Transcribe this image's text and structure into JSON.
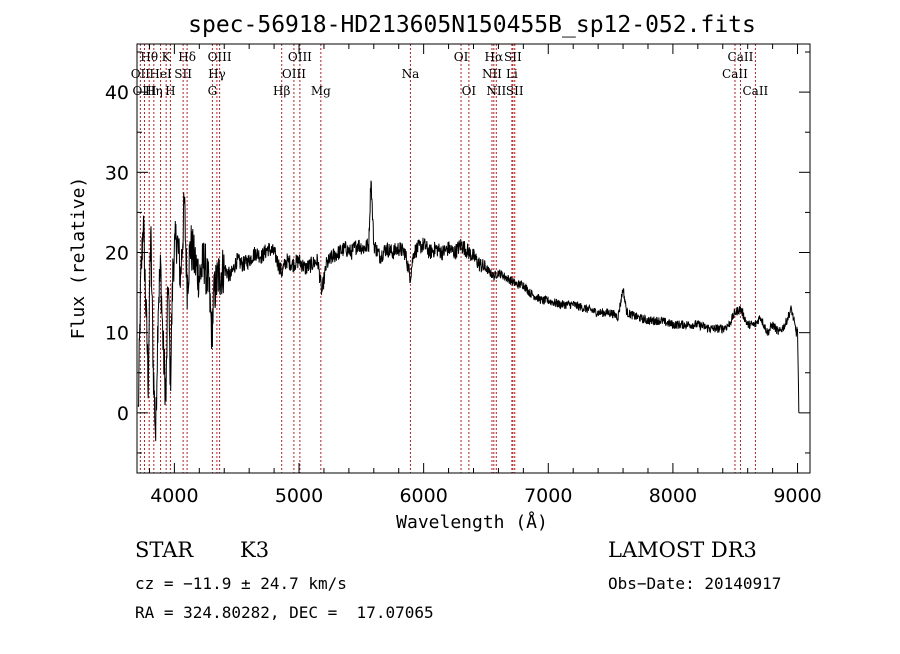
{
  "chart_data": {
    "type": "line",
    "title": "spec-56918-HD213605N150455B_sp12-052.fits",
    "xlabel": "Wavelength (Å)",
    "ylabel": "Flux (relative)",
    "xlim": [
      3700,
      9100
    ],
    "ylim": [
      -7.5,
      46
    ],
    "xticks": [
      4000,
      5000,
      6000,
      7000,
      8000,
      9000
    ],
    "yticks": [
      0,
      10,
      20,
      30,
      40
    ],
    "colors": {
      "spectrum": "#000000",
      "lines": "#b22222",
      "axes": "#000000"
    },
    "spectrum_points": [
      [
        3710,
        0.0
      ],
      [
        3730,
        16.0
      ],
      [
        3750,
        24.0
      ],
      [
        3770,
        14.0
      ],
      [
        3790,
        4.0
      ],
      [
        3810,
        23.0
      ],
      [
        3830,
        6.0
      ],
      [
        3850,
        -3.0
      ],
      [
        3870,
        14.0
      ],
      [
        3890,
        18.0
      ],
      [
        3910,
        8.0
      ],
      [
        3933,
        2.0
      ],
      [
        3950,
        17.0
      ],
      [
        3968,
        4.0
      ],
      [
        3990,
        19.0
      ],
      [
        4020,
        22.0
      ],
      [
        4050,
        17.0
      ],
      [
        4080,
        26.0
      ],
      [
        4102,
        16.0
      ],
      [
        4130,
        21.0
      ],
      [
        4160,
        19.0
      ],
      [
        4200,
        17.0
      ],
      [
        4240,
        19.0
      ],
      [
        4280,
        15.0
      ],
      [
        4300,
        10.0
      ],
      [
        4320,
        15.0
      ],
      [
        4350,
        17.0
      ],
      [
        4400,
        18.0
      ],
      [
        4450,
        17.0
      ],
      [
        4500,
        19.0
      ],
      [
        4550,
        18.5
      ],
      [
        4600,
        19.0
      ],
      [
        4650,
        20.0
      ],
      [
        4700,
        19.5
      ],
      [
        4750,
        20.5
      ],
      [
        4800,
        20.0
      ],
      [
        4861,
        17.5
      ],
      [
        4900,
        19.0
      ],
      [
        4950,
        18.5
      ],
      [
        5000,
        19.0
      ],
      [
        5050,
        18.0
      ],
      [
        5100,
        18.5
      ],
      [
        5150,
        19.0
      ],
      [
        5183,
        15.0
      ],
      [
        5220,
        18.5
      ],
      [
        5270,
        19.5
      ],
      [
        5320,
        20.0
      ],
      [
        5370,
        20.5
      ],
      [
        5420,
        20.0
      ],
      [
        5470,
        21.0
      ],
      [
        5520,
        20.5
      ],
      [
        5560,
        21.0
      ],
      [
        5577,
        29.5
      ],
      [
        5600,
        21.0
      ],
      [
        5650,
        19.5
      ],
      [
        5700,
        20.5
      ],
      [
        5750,
        20.0
      ],
      [
        5800,
        20.5
      ],
      [
        5850,
        20.0
      ],
      [
        5893,
        17.0
      ],
      [
        5920,
        20.0
      ],
      [
        5950,
        20.5
      ],
      [
        6000,
        21.0
      ],
      [
        6050,
        20.0
      ],
      [
        6100,
        20.5
      ],
      [
        6150,
        20.0
      ],
      [
        6200,
        20.5
      ],
      [
        6250,
        20.0
      ],
      [
        6300,
        21.0
      ],
      [
        6363,
        20.0
      ],
      [
        6400,
        19.5
      ],
      [
        6450,
        18.5
      ],
      [
        6500,
        18.0
      ],
      [
        6563,
        17.0
      ],
      [
        6600,
        17.5
      ],
      [
        6650,
        17.0
      ],
      [
        6700,
        16.5
      ],
      [
        6750,
        16.0
      ],
      [
        6800,
        16.0
      ],
      [
        6850,
        15.0
      ],
      [
        6900,
        14.5
      ],
      [
        6950,
        14.0
      ],
      [
        7000,
        14.0
      ],
      [
        7100,
        13.5
      ],
      [
        7200,
        13.5
      ],
      [
        7300,
        13.0
      ],
      [
        7400,
        12.5
      ],
      [
        7500,
        12.5
      ],
      [
        7560,
        12.0
      ],
      [
        7600,
        15.5
      ],
      [
        7630,
        12.5
      ],
      [
        7700,
        12.0
      ],
      [
        7800,
        11.5
      ],
      [
        7900,
        11.5
      ],
      [
        8000,
        11.0
      ],
      [
        8100,
        11.0
      ],
      [
        8200,
        11.0
      ],
      [
        8300,
        10.5
      ],
      [
        8400,
        10.5
      ],
      [
        8450,
        11.0
      ],
      [
        8498,
        12.5
      ],
      [
        8542,
        13.0
      ],
      [
        8600,
        11.0
      ],
      [
        8662,
        11.0
      ],
      [
        8700,
        12.0
      ],
      [
        8760,
        10.0
      ],
      [
        8800,
        11.0
      ],
      [
        8850,
        10.0
      ],
      [
        8900,
        11.0
      ],
      [
        8950,
        13.0
      ],
      [
        8990,
        10.0
      ],
      [
        9000,
        10.5
      ],
      [
        9010,
        0.0
      ]
    ],
    "line_markers": [
      {
        "label": "OII",
        "wave": 3727,
        "row": 2
      },
      {
        "label": "Hθ",
        "wave": 3798,
        "row": 1
      },
      {
        "label": "OIII",
        "wave": 3760,
        "row": 3
      },
      {
        "label": "Hη",
        "wave": 3835,
        "row": 3
      },
      {
        "label": "HeI",
        "wave": 3889,
        "row": 2
      },
      {
        "label": "K",
        "wave": 3934,
        "row": 1
      },
      {
        "label": "H",
        "wave": 3968,
        "row": 3
      },
      {
        "label": "SII",
        "wave": 4070,
        "row": 2
      },
      {
        "label": "Hδ",
        "wave": 4102,
        "row": 1
      },
      {
        "label": "G",
        "wave": 4305,
        "row": 3
      },
      {
        "label": "Hγ",
        "wave": 4341,
        "row": 2
      },
      {
        "label": "OIII",
        "wave": 4363,
        "row": 1
      },
      {
        "label": "Hβ",
        "wave": 4861,
        "row": 3
      },
      {
        "label": "OIII",
        "wave": 4959,
        "row": 2
      },
      {
        "label": "OIII",
        "wave": 5007,
        "row": 1
      },
      {
        "label": "Mg",
        "wave": 5175,
        "row": 3
      },
      {
        "label": "Na",
        "wave": 5894,
        "row": 2
      },
      {
        "label": "OI",
        "wave": 6300,
        "row": 1
      },
      {
        "label": "OI",
        "wave": 6363,
        "row": 3
      },
      {
        "label": "NII",
        "wave": 6548,
        "row": 2
      },
      {
        "label": "Hα",
        "wave": 6563,
        "row": 1
      },
      {
        "label": "NII",
        "wave": 6583,
        "row": 3
      },
      {
        "label": "Li",
        "wave": 6708,
        "row": 2
      },
      {
        "label": "SII",
        "wave": 6716,
        "row": 1
      },
      {
        "label": "SII",
        "wave": 6731,
        "row": 3
      },
      {
        "label": "CaII",
        "wave": 8498,
        "row": 2
      },
      {
        "label": "CaII",
        "wave": 8542,
        "row": 1
      },
      {
        "label": "CaII",
        "wave": 8662,
        "row": 3
      }
    ]
  },
  "info": {
    "class": "STAR",
    "subclass": "K3",
    "survey": "LAMOST DR3",
    "cz": "cz = −11.9 ± 24.7 km/s",
    "obs_date": "Obs−Date: 20140917",
    "coords": "RA = 324.80282, DEC =  17.07065"
  }
}
